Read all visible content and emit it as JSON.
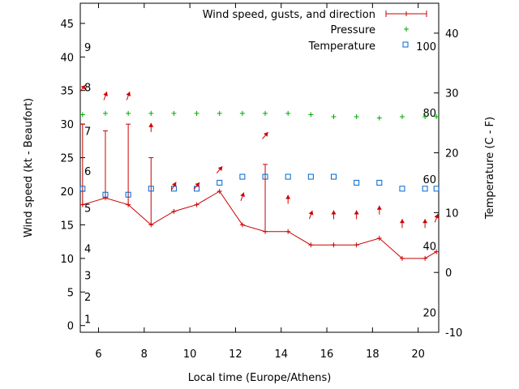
{
  "chart_data": {
    "type": "line",
    "xlabel": "Local time (Europe/Athens)",
    "ylabel": "Wind speed (kt - Beaufort)",
    "y2label": "Temperature (C - F)",
    "xlim": [
      5.2,
      20.9
    ],
    "ylim": [
      -1,
      48
    ],
    "y2lim": [
      -10,
      45
    ],
    "x_ticks": [
      6,
      8,
      10,
      12,
      14,
      16,
      18,
      20
    ],
    "y_ticks": [
      0,
      5,
      10,
      15,
      20,
      25,
      30,
      35,
      40,
      45
    ],
    "y2_ticks": [
      -10,
      0,
      10,
      20,
      30,
      40
    ],
    "beaufort_labels": [
      {
        "text": "1",
        "y": 1
      },
      {
        "text": "2",
        "y": 4.3
      },
      {
        "text": "3",
        "y": 7.5
      },
      {
        "text": "4",
        "y": 11.5
      },
      {
        "text": "5",
        "y": 17.5
      },
      {
        "text": "6",
        "y": 23
      },
      {
        "text": "7",
        "y": 29
      },
      {
        "text": "8",
        "y": 35.5
      },
      {
        "text": "9",
        "y": 41.5
      }
    ],
    "fahrenheit_labels": [
      {
        "text": "20",
        "y2": -6.7
      },
      {
        "text": "40",
        "y2": 4.4
      },
      {
        "text": "60",
        "y2": 15.6
      },
      {
        "text": "80",
        "y2": 26.7
      },
      {
        "text": "100",
        "y2": 37.8
      }
    ],
    "legend_position": "top-right",
    "series": [
      {
        "name": "Wind speed, gusts, and direction",
        "color": "#cc0000",
        "x": [
          5.3,
          6.3,
          7.3,
          8.3,
          9.3,
          10.3,
          11.3,
          12.3,
          13.3,
          14.3,
          15.3,
          16.3,
          17.3,
          18.3,
          19.3,
          20.3,
          20.8
        ],
        "values": [
          18,
          19,
          18,
          15,
          17,
          18,
          20,
          15,
          14,
          14,
          12,
          12,
          12,
          13,
          10,
          10,
          11
        ],
        "gusts": [
          30,
          29,
          30,
          25,
          null,
          null,
          null,
          null,
          24,
          null,
          null,
          null,
          null,
          null,
          null,
          null,
          null
        ],
        "direction_deg": [
          220,
          200,
          200,
          180,
          210,
          220,
          220,
          200,
          220,
          180,
          200,
          180,
          180,
          180,
          180,
          180,
          200
        ]
      },
      {
        "name": "Pressure",
        "color": "#00aa00",
        "x": [
          5.3,
          6.3,
          7.3,
          8.3,
          9.3,
          10.3,
          11.3,
          12.3,
          13.3,
          14.3,
          15.3,
          16.3,
          17.3,
          18.3,
          19.3,
          20.3,
          20.8
        ],
        "values": [
          31.4,
          31.6,
          31.6,
          31.6,
          31.6,
          31.6,
          31.6,
          31.6,
          31.6,
          31.6,
          31.4,
          31.1,
          31.1,
          30.9,
          31.1,
          31.1,
          31.1
        ]
      },
      {
        "name": "Temperature",
        "color": "#0066cc",
        "x": [
          5.3,
          6.3,
          7.3,
          8.3,
          9.3,
          10.3,
          11.3,
          12.3,
          13.3,
          14.3,
          15.3,
          16.3,
          17.3,
          18.3,
          19.3,
          20.3,
          20.8
        ],
        "values": [
          14,
          13,
          13,
          14,
          14,
          14,
          15,
          16,
          16,
          16,
          16,
          16,
          15,
          15,
          14,
          14,
          14
        ]
      }
    ]
  }
}
